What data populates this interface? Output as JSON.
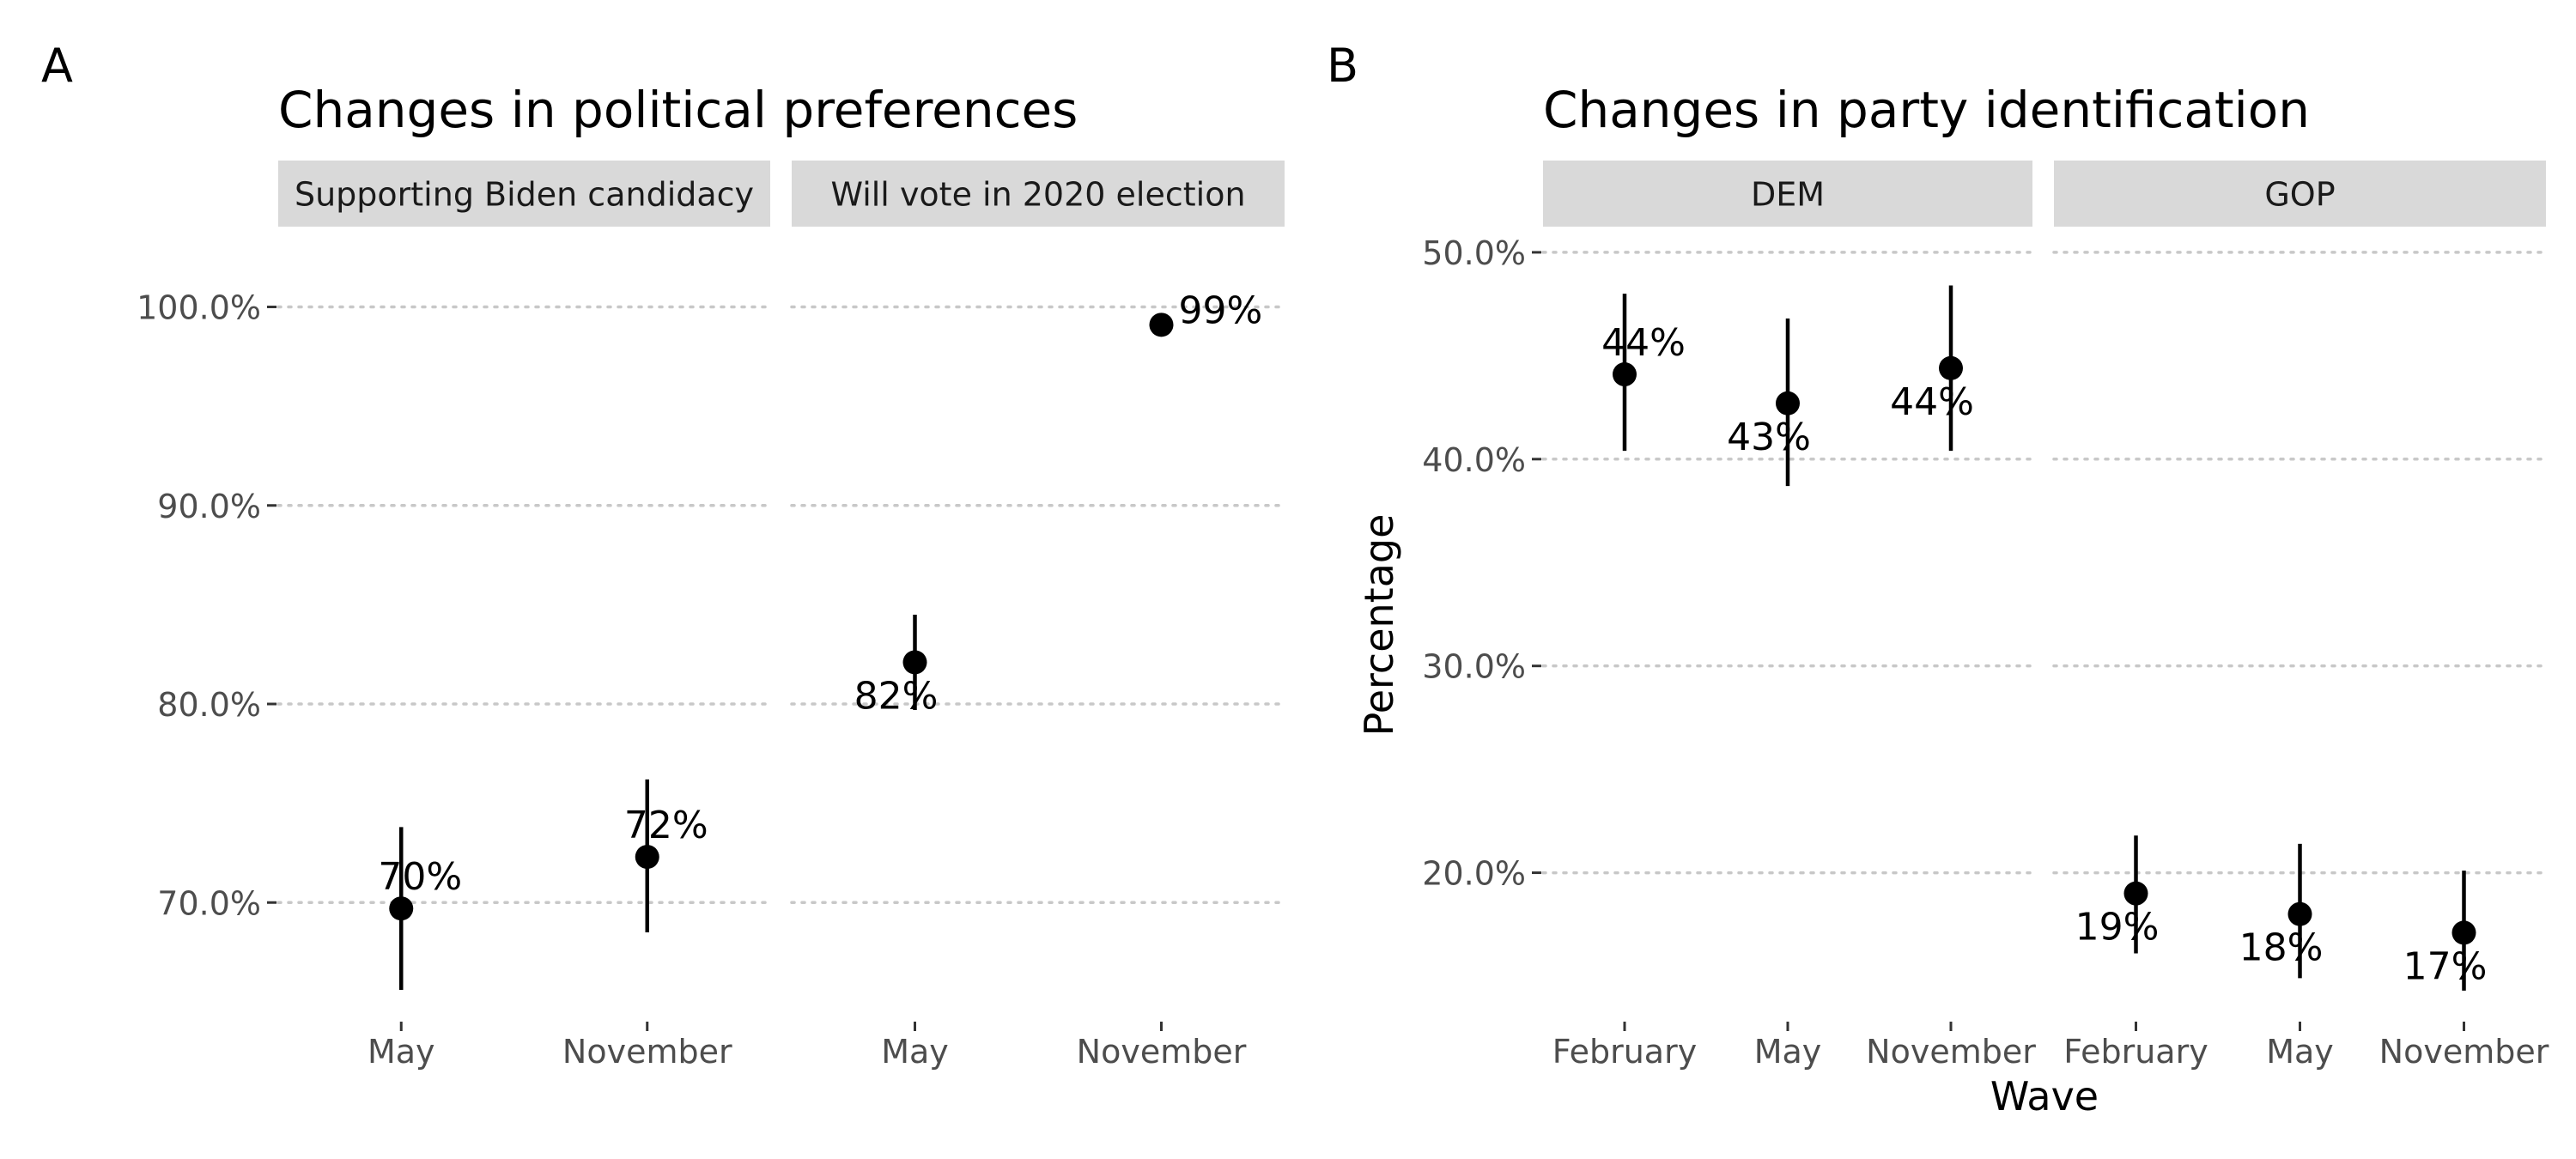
{
  "chart_data": [
    {
      "panel_tag": "A",
      "type": "scatter",
      "title": "Changes in political preferences",
      "xlabel": "",
      "ylabel": "",
      "y_ticks": [
        70,
        80,
        90,
        100
      ],
      "y_tick_labels": [
        "70.0%",
        "80.0%",
        "90.0%",
        "100.0%"
      ],
      "ylim": [
        64,
        104
      ],
      "grid": "horizontal dotted",
      "facets": [
        {
          "strip": "Supporting Biden candidacy",
          "categories": [
            "May",
            "November"
          ],
          "values": [
            69.7,
            72.3
          ],
          "ci_low": [
            65.6,
            68.5
          ],
          "ci_high": [
            73.8,
            76.2
          ],
          "labels": [
            "70%",
            "72%"
          ],
          "label_pos": [
            "above",
            "above"
          ]
        },
        {
          "strip": "Will vote in 2020 election",
          "categories": [
            "May",
            "November"
          ],
          "values": [
            82.1,
            99.1
          ],
          "ci_low": [
            79.7,
            null
          ],
          "ci_high": [
            84.5,
            null
          ],
          "labels": [
            "82%",
            "99%"
          ],
          "label_pos": [
            "below",
            "right"
          ]
        }
      ]
    },
    {
      "panel_tag": "B",
      "type": "scatter",
      "title": "Changes in party identification",
      "xlabel": "Wave",
      "ylabel": "Percentage",
      "y_ticks": [
        20,
        30,
        40,
        50
      ],
      "y_tick_labels": [
        "20.0%",
        "30.0%",
        "40.0%",
        "50.0%"
      ],
      "ylim": [
        12.8,
        51.2
      ],
      "grid": "horizontal dotted",
      "facets": [
        {
          "strip": "DEM",
          "categories": [
            "February",
            "May",
            "November"
          ],
          "values": [
            44.1,
            42.7,
            44.4
          ],
          "ci_low": [
            40.4,
            38.7,
            40.4
          ],
          "ci_high": [
            48.0,
            46.8,
            48.4
          ],
          "labels": [
            "44%",
            "43%",
            "44%"
          ],
          "label_pos": [
            "above",
            "below",
            "below"
          ]
        },
        {
          "strip": "GOP",
          "categories": [
            "February",
            "May",
            "November"
          ],
          "values": [
            19.0,
            18.0,
            17.1
          ],
          "ci_low": [
            16.1,
            14.9,
            14.3
          ],
          "ci_high": [
            21.8,
            21.4,
            20.1
          ],
          "labels": [
            "19%",
            "18%",
            "17%"
          ],
          "label_pos": [
            "below",
            "below",
            "below"
          ]
        }
      ]
    }
  ]
}
